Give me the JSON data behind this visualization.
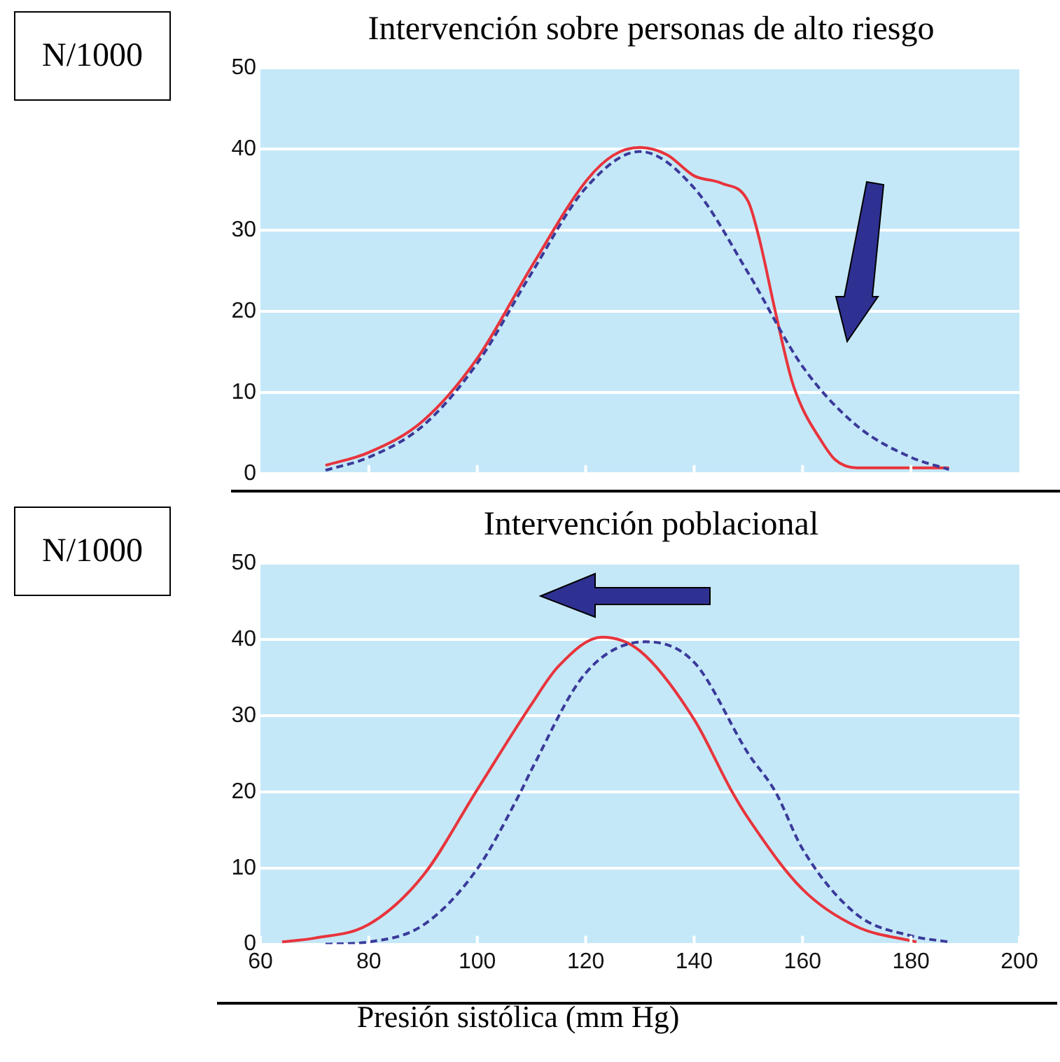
{
  "chart_data": [
    {
      "type": "line",
      "title": "Intervención sobre personas de alto riesgo",
      "ylabel": "N/1000",
      "xlim": [
        60,
        200
      ],
      "xticks": [
        {
          "value": 80,
          "label": null
        },
        {
          "value": 100,
          "label": null
        },
        {
          "value": 120,
          "label": null
        },
        {
          "value": 140,
          "label": null
        },
        {
          "value": 160,
          "label": null
        },
        {
          "value": 180,
          "label": null
        }
      ],
      "ylim": [
        0,
        50
      ],
      "yticks": [
        0,
        10,
        20,
        30,
        40,
        50
      ],
      "grid": "y",
      "tick_labels": "y",
      "marker": "none",
      "series": [
        {
          "color": "#e8343c",
          "line_style": "solid",
          "x": [
            72,
            80,
            90,
            100,
            110,
            120,
            125,
            130,
            135,
            140,
            145,
            150,
            152,
            155,
            158,
            160,
            163,
            166,
            170,
            187
          ],
          "values": [
            1.0,
            2.6,
            6.5,
            14.2,
            25.5,
            36,
            39.2,
            40.2,
            39.3,
            36.7,
            35.8,
            33.5,
            29,
            19.9,
            11.5,
            8,
            4.5,
            1.7,
            0.7,
            0.7
          ]
        },
        {
          "color": "#3a3a9a",
          "line_style": "dashed",
          "x": [
            72,
            80,
            90,
            100,
            110,
            120,
            130,
            140,
            150,
            160,
            170,
            180,
            187
          ],
          "values": [
            0.4,
            2.0,
            5.9,
            13.6,
            24.7,
            35.2,
            39.7,
            35.2,
            24.7,
            13.2,
            5.9,
            2.0,
            0.5
          ]
        }
      ]
    },
    {
      "type": "line",
      "title": "Intervención poblacional",
      "ylabel": "N/1000",
      "xlabel": "Presión sistólica (mm Hg)",
      "xlim": [
        60,
        200
      ],
      "xticks": [
        60,
        80,
        100,
        120,
        140,
        160,
        180,
        200
      ],
      "ylim": [
        0,
        50
      ],
      "yticks": [
        0,
        10,
        20,
        30,
        40,
        50
      ],
      "grid": "y",
      "marker": "none",
      "series": [
        {
          "color": "#e8343c",
          "line_style": "solid",
          "x": [
            64,
            70,
            80,
            90,
            100,
            110,
            115,
            123,
            130,
            140,
            147,
            150,
            160,
            170,
            181
          ],
          "values": [
            0.3,
            0.8,
            2.6,
            9.0,
            20.3,
            31.5,
            36.5,
            40.3,
            38.5,
            29.5,
            20,
            16.5,
            7.2,
            2.3,
            0.3
          ]
        },
        {
          "color": "#3a3a9a",
          "line_style": "dashed",
          "x": [
            72,
            80,
            90,
            100,
            108,
            110,
            120,
            131,
            140,
            150,
            155,
            160,
            170,
            180,
            187
          ],
          "values": [
            0,
            0.3,
            2.5,
            9.9,
            20,
            22.9,
            35.6,
            39.7,
            37,
            25,
            20,
            12.5,
            3.9,
            1.1,
            0.3
          ]
        }
      ]
    }
  ]
}
